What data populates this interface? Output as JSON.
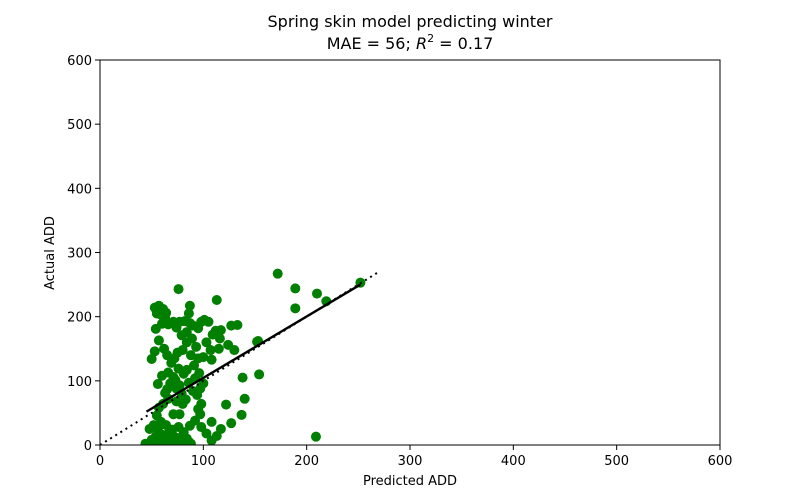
{
  "chart_data": {
    "type": "scatter",
    "title": "Spring skin model predicting winter",
    "subtitle_prefix": "MAE = 56; ",
    "subtitle_r2_symbol": "R",
    "subtitle_r2_exponent": "2",
    "subtitle_suffix": " = 0.17",
    "xlabel": "Predicted ADD",
    "ylabel": "Actual ADD",
    "xlim": [
      0,
      600
    ],
    "ylim": [
      0,
      600
    ],
    "xticks": [
      "0",
      "100",
      "200",
      "300",
      "400",
      "500",
      "600"
    ],
    "yticks": [
      "0",
      "100",
      "200",
      "300",
      "400",
      "500",
      "600"
    ],
    "grid": false,
    "colors": {
      "points": "#007f00",
      "fit_line": "#000000",
      "identity_line": "#000000"
    },
    "fit_line": [
      [
        45,
        52
      ],
      [
        252,
        250
      ]
    ],
    "identity_line": [
      [
        0,
        0
      ],
      [
        268,
        268
      ]
    ],
    "points": [
      [
        172,
        267
      ],
      [
        189,
        244
      ],
      [
        210,
        236
      ],
      [
        219,
        224
      ],
      [
        189,
        213
      ],
      [
        252,
        253
      ],
      [
        153,
        162
      ],
      [
        152,
        161
      ],
      [
        154,
        110
      ],
      [
        138,
        105
      ],
      [
        140,
        72
      ],
      [
        137,
        47
      ],
      [
        122,
        63
      ],
      [
        127,
        34
      ],
      [
        117,
        25
      ],
      [
        113,
        14
      ],
      [
        108,
        7
      ],
      [
        209,
        13
      ],
      [
        113,
        226
      ],
      [
        87,
        217
      ],
      [
        76,
        243
      ],
      [
        53,
        214
      ],
      [
        57,
        217
      ],
      [
        61,
        212
      ],
      [
        64,
        206
      ],
      [
        63,
        198
      ],
      [
        59,
        203
      ],
      [
        55,
        205
      ],
      [
        54,
        181
      ],
      [
        60,
        189
      ],
      [
        66,
        188
      ],
      [
        71,
        192
      ],
      [
        74,
        183
      ],
      [
        77,
        192
      ],
      [
        82,
        193
      ],
      [
        86,
        205
      ],
      [
        87,
        190
      ],
      [
        90,
        186
      ],
      [
        95,
        182
      ],
      [
        98,
        192
      ],
      [
        101,
        195
      ],
      [
        105,
        192
      ],
      [
        109,
        172
      ],
      [
        112,
        178
      ],
      [
        117,
        179
      ],
      [
        116,
        166
      ],
      [
        127,
        186
      ],
      [
        133,
        187
      ],
      [
        124,
        156
      ],
      [
        130,
        148
      ],
      [
        115,
        150
      ],
      [
        103,
        160
      ],
      [
        107,
        148
      ],
      [
        100,
        137
      ],
      [
        108,
        133
      ],
      [
        50,
        134
      ],
      [
        53,
        146
      ],
      [
        57,
        163
      ],
      [
        62,
        150
      ],
      [
        65,
        140
      ],
      [
        69,
        128
      ],
      [
        72,
        135
      ],
      [
        75,
        144
      ],
      [
        80,
        148
      ],
      [
        84,
        160
      ],
      [
        79,
        171
      ],
      [
        84,
        176
      ],
      [
        89,
        166
      ],
      [
        93,
        153
      ],
      [
        88,
        140
      ],
      [
        95,
        135
      ],
      [
        91,
        124
      ],
      [
        84,
        117
      ],
      [
        81,
        111
      ],
      [
        76,
        119
      ],
      [
        71,
        106
      ],
      [
        68,
        96
      ],
      [
        65,
        87
      ],
      [
        63,
        81
      ],
      [
        56,
        95
      ],
      [
        60,
        108
      ],
      [
        66,
        113
      ],
      [
        73,
        101
      ],
      [
        77,
        93
      ],
      [
        86,
        97
      ],
      [
        92,
        104
      ],
      [
        96,
        112
      ],
      [
        100,
        96
      ],
      [
        97,
        88
      ],
      [
        94,
        78
      ],
      [
        90,
        84
      ],
      [
        98,
        64
      ],
      [
        95,
        56
      ],
      [
        97,
        48
      ],
      [
        92,
        38
      ],
      [
        87,
        30
      ],
      [
        98,
        28
      ],
      [
        108,
        36
      ],
      [
        103,
        18
      ],
      [
        74,
        88
      ],
      [
        79,
        80
      ],
      [
        74,
        68
      ],
      [
        71,
        48
      ],
      [
        77,
        48
      ],
      [
        80,
        64
      ],
      [
        83,
        71
      ],
      [
        66,
        72
      ],
      [
        61,
        64
      ],
      [
        57,
        58
      ],
      [
        55,
        46
      ],
      [
        59,
        36
      ],
      [
        64,
        31
      ],
      [
        67,
        20
      ],
      [
        70,
        24
      ],
      [
        76,
        28
      ],
      [
        81,
        20
      ],
      [
        48,
        25
      ],
      [
        52,
        31
      ],
      [
        56,
        25
      ],
      [
        60,
        16
      ],
      [
        63,
        10
      ],
      [
        67,
        8
      ],
      [
        71,
        14
      ],
      [
        75,
        11
      ],
      [
        79,
        6
      ],
      [
        84,
        10
      ],
      [
        88,
        2
      ],
      [
        44,
        2
      ],
      [
        50,
        8
      ],
      [
        54,
        13
      ],
      [
        58,
        3
      ],
      [
        62,
        0
      ],
      [
        66,
        2
      ],
      [
        70,
        4
      ],
      [
        73,
        0
      ],
      [
        78,
        0
      ],
      [
        82,
        1
      ],
      [
        86,
        5
      ],
      [
        52,
        0
      ]
    ]
  }
}
